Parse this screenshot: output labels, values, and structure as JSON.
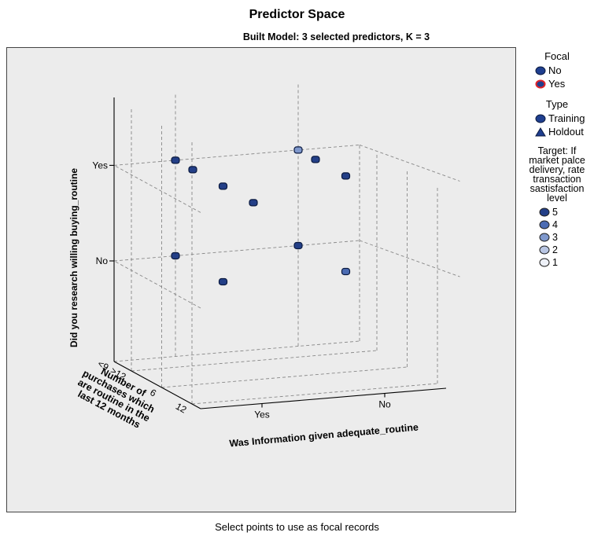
{
  "chart_data": {
    "type": "scatter",
    "title": "Predictor Space",
    "subtitle": "Built Model: 3 selected predictors, K = 3",
    "footer": "Select points to use as focal records",
    "axes": {
      "x": {
        "label": "Was Information given adequate_routine",
        "ticks": [
          "Yes",
          "No"
        ]
      },
      "y": {
        "label": "Did you research willing buying_routine",
        "ticks": [
          "Yes",
          "No"
        ]
      },
      "z": {
        "label": "Number of purchases which are routine in the last 12 months",
        "ticks": [
          "<9",
          ">12",
          "6",
          "12"
        ]
      }
    },
    "points": [
      {
        "x": "Yes",
        "y": "Yes",
        "z": "<9",
        "target": 5,
        "focal": "No",
        "type": "Training"
      },
      {
        "x": "Yes",
        "y": "Yes",
        "z": ">12",
        "target": 5,
        "focal": "No",
        "type": "Training"
      },
      {
        "x": "Yes",
        "y": "Yes",
        "z": "6",
        "target": 5,
        "focal": "No",
        "type": "Training"
      },
      {
        "x": "Yes",
        "y": "Yes",
        "z": "12",
        "target": 5,
        "focal": "No",
        "type": "Training"
      },
      {
        "x": "No",
        "y": "Yes",
        "z": "<9",
        "target": 3,
        "focal": "No",
        "type": "Training"
      },
      {
        "x": "No",
        "y": "Yes",
        "z": ">12",
        "target": 5,
        "focal": "No",
        "type": "Training"
      },
      {
        "x": "No",
        "y": "Yes",
        "z": "6",
        "target": 5,
        "focal": "No",
        "type": "Training"
      },
      {
        "x": "Yes",
        "y": "No",
        "z": "<9",
        "target": 5,
        "focal": "No",
        "type": "Training"
      },
      {
        "x": "Yes",
        "y": "No",
        "z": "6",
        "target": 5,
        "focal": "No",
        "type": "Training"
      },
      {
        "x": "No",
        "y": "No",
        "z": "<9",
        "target": 5,
        "focal": "No",
        "type": "Training"
      },
      {
        "x": "No",
        "y": "No",
        "z": "6",
        "target": 4,
        "focal": "No",
        "type": "Training"
      }
    ]
  },
  "legend": {
    "focal": {
      "title": "Focal",
      "items": [
        {
          "label": "No",
          "color": "#1f3f8f",
          "ring": "#0b1a40"
        },
        {
          "label": "Yes",
          "color": "#1f3f8f",
          "ring": "#e0242a"
        }
      ]
    },
    "type": {
      "title": "Type",
      "items": [
        {
          "label": "Training",
          "icon": "circle-marker-icon"
        },
        {
          "label": "Holdout",
          "icon": "triangle-marker-icon"
        }
      ]
    },
    "target": {
      "title_lines": [
        "Target: If",
        "market palce",
        "delivery, rate",
        "transaction",
        "sastisfaction",
        "level"
      ],
      "items": [
        {
          "label": "5",
          "color": "#233f87"
        },
        {
          "label": "4",
          "color": "#4c6cb3"
        },
        {
          "label": "3",
          "color": "#7f98cc"
        },
        {
          "label": "2",
          "color": "#b9c6e3"
        },
        {
          "label": "1",
          "color": "#eef1f8"
        }
      ]
    }
  }
}
